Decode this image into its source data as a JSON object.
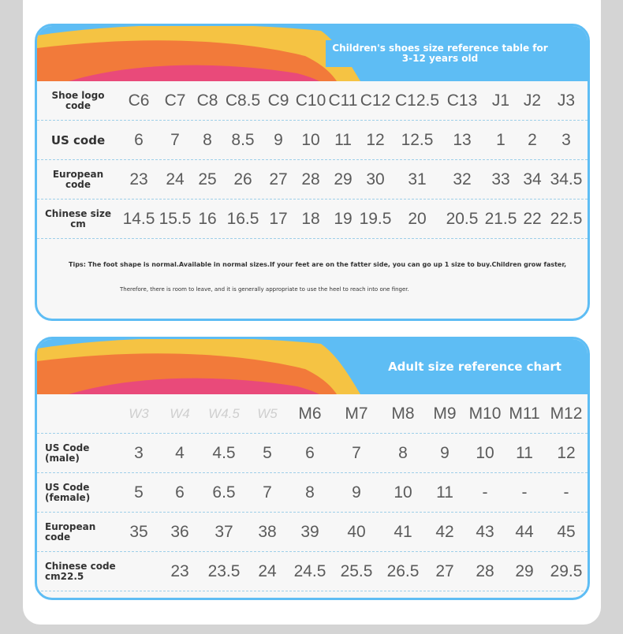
{
  "kids_table": {
    "title": "Children's shoes size reference table for 3-12 years old",
    "rows": [
      {
        "label": "Shoe logo code",
        "values": [
          "C6",
          "C7",
          "C8",
          "C8.5",
          "C9",
          "C10",
          "C11",
          "C12",
          "C12.5",
          "C13",
          "J1",
          "J2",
          "J3"
        ]
      },
      {
        "label": "US code",
        "values": [
          "6",
          "7",
          "8",
          "8.5",
          "9",
          "10",
          "11",
          "12",
          "12.5",
          "13",
          "1",
          "2",
          "3"
        ]
      },
      {
        "label": "European code",
        "values": [
          "23",
          "24",
          "25",
          "26",
          "27",
          "28",
          "29",
          "30",
          "31",
          "32",
          "33",
          "34",
          "34.5"
        ]
      },
      {
        "label": "Chinese size cm",
        "values": [
          "14.5",
          "15.5",
          "16",
          "16.5",
          "17",
          "18",
          "19",
          "19.5",
          "20",
          "20.5",
          "21.5",
          "22",
          "22.5"
        ]
      }
    ],
    "tips_line1": "Tips: The foot shape is normal.Available in normal sizes.If your feet are on the fatter side, you can go up 1 size to buy.Children grow faster,",
    "tips_line2": "Therefore, there is room to leave, and it is generally appropriate to use the heel to reach into one finger."
  },
  "adult_table": {
    "title": "Adult size reference chart",
    "rows": [
      {
        "label": "",
        "values": [
          "W3",
          "W4",
          "W4.5",
          "W5",
          "M6",
          "M7",
          "M8",
          "M9",
          "M10",
          "M11",
          "M12"
        ],
        "faded": [
          true,
          true,
          true,
          true,
          false,
          false,
          false,
          false,
          false,
          false,
          false
        ]
      },
      {
        "label": "US Code (male)",
        "values": [
          "3",
          "4",
          "4.5",
          "5",
          "6",
          "7",
          "8",
          "9",
          "10",
          "11",
          "12"
        ]
      },
      {
        "label": "US Code (female)",
        "values": [
          "5",
          "6",
          "6.5",
          "7",
          "8",
          "9",
          "10",
          "11",
          "-",
          "-",
          "-"
        ]
      },
      {
        "label": "European code",
        "values": [
          "35",
          "36",
          "37",
          "38",
          "39",
          "40",
          "41",
          "42",
          "43",
          "44",
          "45"
        ]
      },
      {
        "label": "Chinese code cm22.5",
        "values": [
          "",
          "23",
          "23.5",
          "24",
          "24.5",
          "25.5",
          "26.5",
          "27",
          "28",
          "29",
          "29.5"
        ]
      }
    ]
  }
}
